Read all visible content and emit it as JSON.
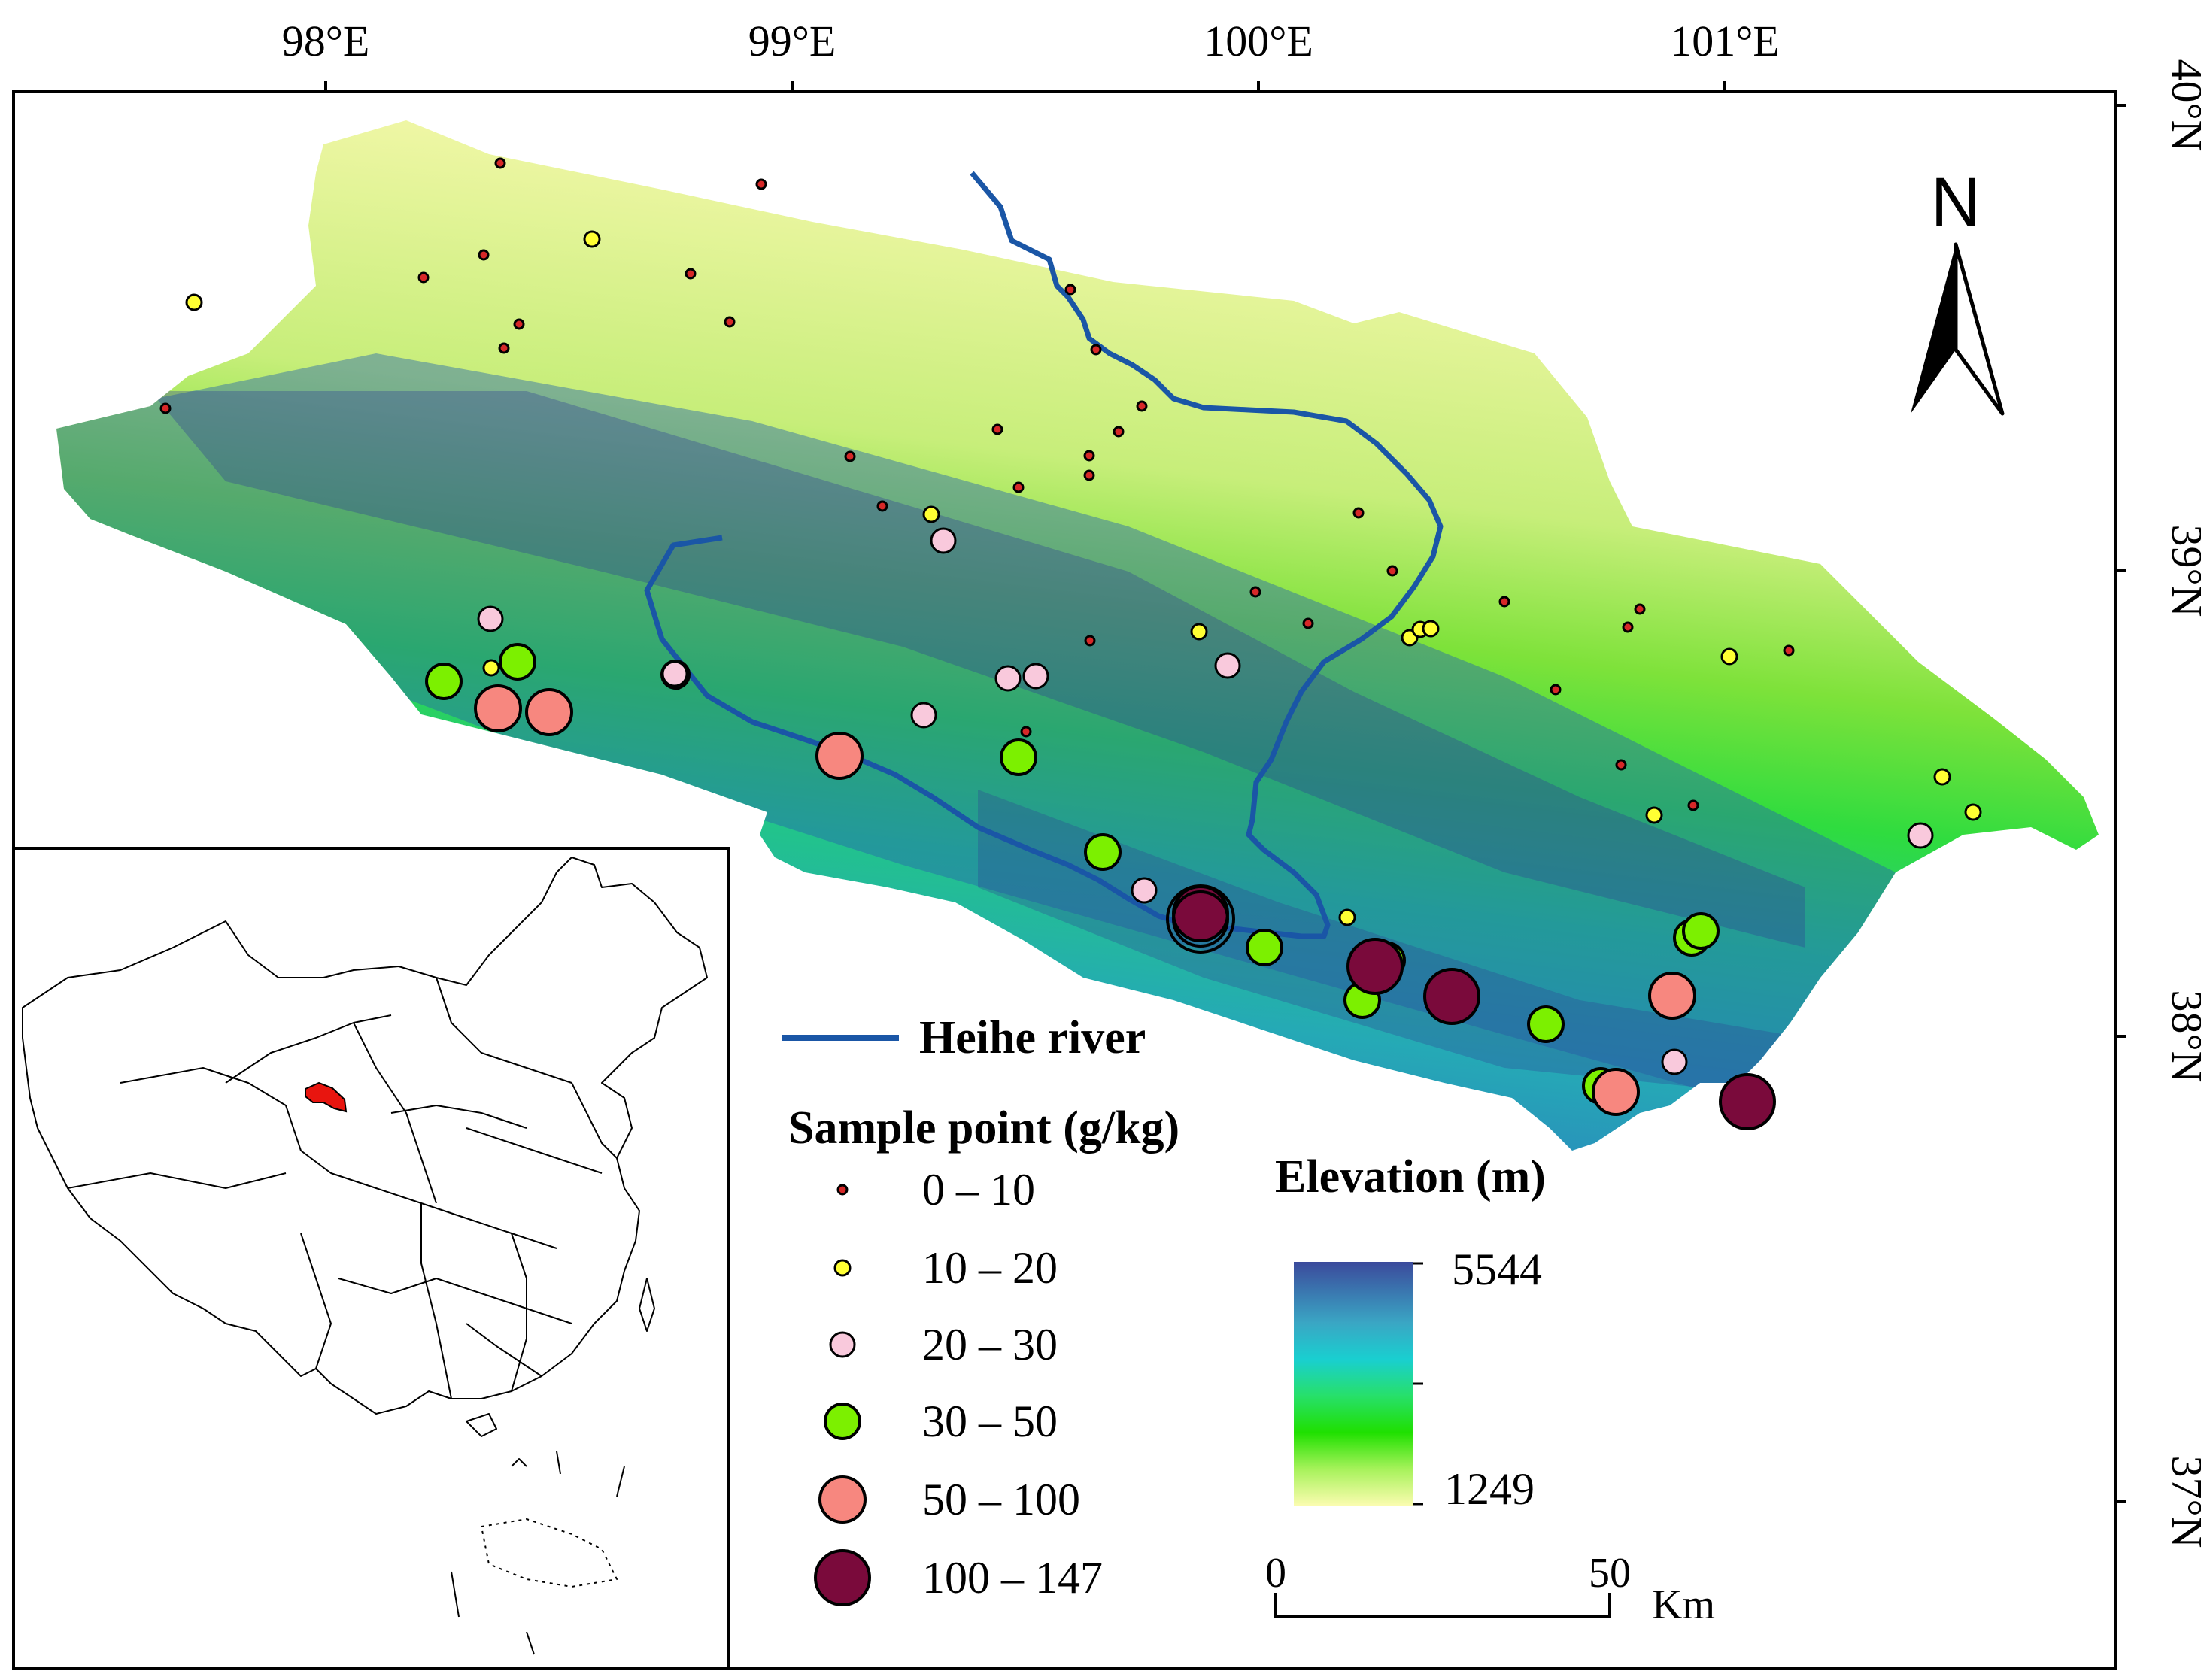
{
  "map": {
    "longitude_ticks": [
      "98°E",
      "99°E",
      "100°E",
      "101°E"
    ],
    "latitude_ticks": [
      "40°N",
      "39°N",
      "38°N",
      "37°N"
    ],
    "north_arrow": "N",
    "river": {
      "label": "Heihe river",
      "color": "#1a56a6"
    },
    "sample_legend": {
      "title": "Sample point (g/kg)",
      "classes": [
        {
          "label": "0 – 10",
          "color": "#d62828"
        },
        {
          "label": "10 – 20",
          "color": "#ffff33"
        },
        {
          "label": "20 – 30",
          "color": "#f9c9dc"
        },
        {
          "label": "30 – 50",
          "color": "#7cf000"
        },
        {
          "label": "50 – 100",
          "color": "#f7877f"
        },
        {
          "label": "100 – 147",
          "color": "#7a0a3b"
        }
      ]
    },
    "elevation_legend": {
      "title": "Elevation (m)",
      "max": "5544",
      "min": "1249",
      "ramp_colors": [
        "#3b4a9c",
        "#3aa6c4",
        "#19cfd0",
        "#27e06a",
        "#1fe000",
        "#a6f25a",
        "#fbfcb0"
      ]
    },
    "scale_bar": {
      "start": "0",
      "end": "50",
      "unit": "Km"
    },
    "inset": {
      "highlight_color": "#e8150f"
    }
  }
}
